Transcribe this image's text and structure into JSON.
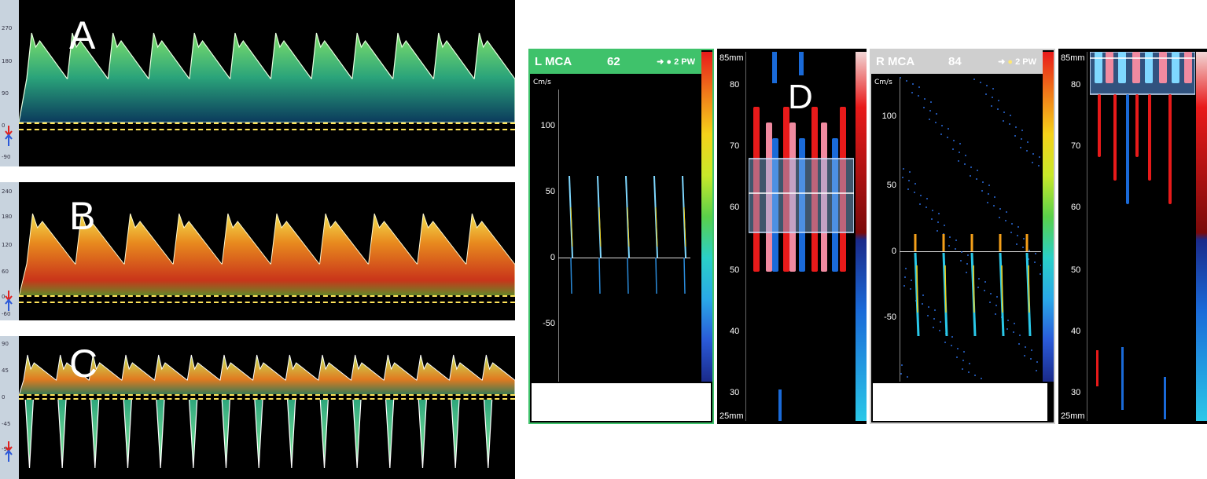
{
  "panels": {
    "A": {
      "letter": "A",
      "ticks": [
        "270",
        "180",
        "90",
        "0",
        "-90"
      ]
    },
    "B": {
      "letter": "B",
      "ticks": [
        "240",
        "180",
        "120",
        "60",
        "0",
        "-60"
      ]
    },
    "C": {
      "letter": "C",
      "ticks": [
        "90",
        "45",
        "0",
        "-45",
        "-90"
      ]
    }
  },
  "figure_label_d": "D",
  "left_mca": {
    "name": "L MCA",
    "value": "62",
    "mode": "2 PW",
    "unit": "Cm/s",
    "ticks": [
      "100",
      "50",
      "0",
      "-50"
    ],
    "header_color": "#3fc26b"
  },
  "right_mca": {
    "name": "R MCA",
    "value": "84",
    "mode": "2 PW",
    "unit": "Cm/s",
    "ticks": [
      "100",
      "50",
      "0",
      "-50"
    ],
    "header_color": "#cfcfcf"
  },
  "left_mmode": {
    "top": "85mm",
    "bottom": "25mm",
    "ticks": [
      "80",
      "70",
      "60",
      "50",
      "40",
      "30"
    ]
  },
  "right_mmode": {
    "top": "85mm",
    "bottom": "25mm",
    "ticks": [
      "80",
      "70",
      "60",
      "50",
      "40",
      "30"
    ]
  }
}
